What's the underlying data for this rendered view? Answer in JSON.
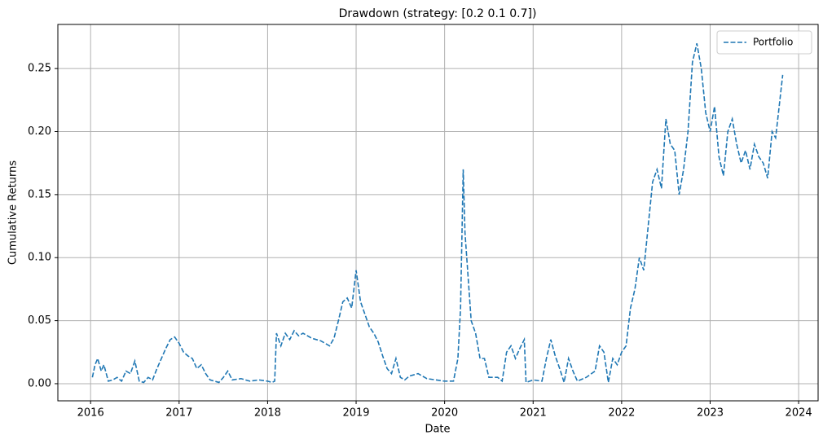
{
  "chart_data": {
    "type": "line",
    "title": "Drawdown (strategy: [0.2 0.1 0.7])",
    "x_label": "Date",
    "y_label": "Cumulative Returns",
    "x": [
      2016.02,
      2016.05,
      2016.08,
      2016.12,
      2016.15,
      2016.2,
      2016.25,
      2016.3,
      2016.35,
      2016.4,
      2016.45,
      2016.5,
      2016.55,
      2016.6,
      2016.65,
      2016.7,
      2016.75,
      2016.8,
      2016.85,
      2016.9,
      2016.95,
      2017.0,
      2017.05,
      2017.1,
      2017.15,
      2017.2,
      2017.25,
      2017.3,
      2017.35,
      2017.4,
      2017.45,
      2017.5,
      2017.55,
      2017.6,
      2017.7,
      2017.8,
      2017.9,
      2018.0,
      2018.05,
      2018.08,
      2018.1,
      2018.15,
      2018.2,
      2018.25,
      2018.3,
      2018.35,
      2018.4,
      2018.5,
      2018.6,
      2018.7,
      2018.75,
      2018.8,
      2018.85,
      2018.9,
      2018.95,
      2019.0,
      2019.05,
      2019.1,
      2019.15,
      2019.2,
      2019.25,
      2019.3,
      2019.35,
      2019.4,
      2019.45,
      2019.5,
      2019.55,
      2019.6,
      2019.7,
      2019.8,
      2019.9,
      2020.0,
      2020.1,
      2020.15,
      2020.18,
      2020.21,
      2020.23,
      2020.26,
      2020.3,
      2020.35,
      2020.4,
      2020.45,
      2020.5,
      2020.6,
      2020.65,
      2020.7,
      2020.75,
      2020.8,
      2020.85,
      2020.9,
      2020.92,
      2021.0,
      2021.1,
      2021.15,
      2021.2,
      2021.25,
      2021.3,
      2021.35,
      2021.4,
      2021.45,
      2021.5,
      2021.6,
      2021.7,
      2021.75,
      2021.8,
      2021.85,
      2021.9,
      2021.95,
      2022.0,
      2022.05,
      2022.1,
      2022.15,
      2022.2,
      2022.25,
      2022.3,
      2022.35,
      2022.4,
      2022.45,
      2022.5,
      2022.55,
      2022.6,
      2022.65,
      2022.7,
      2022.75,
      2022.8,
      2022.85,
      2022.9,
      2022.95,
      2023.0,
      2023.05,
      2023.1,
      2023.15,
      2023.2,
      2023.25,
      2023.3,
      2023.35,
      2023.4,
      2023.45,
      2023.5,
      2023.55,
      2023.6,
      2023.65,
      2023.7,
      2023.74,
      2023.78,
      2023.82
    ],
    "series": [
      {
        "name": "Portfolio",
        "color": "#1f77b4",
        "values": [
          0.005,
          0.015,
          0.02,
          0.01,
          0.015,
          0.002,
          0.003,
          0.005,
          0.002,
          0.01,
          0.008,
          0.018,
          0.002,
          0.001,
          0.005,
          0.003,
          0.012,
          0.02,
          0.028,
          0.035,
          0.037,
          0.032,
          0.025,
          0.022,
          0.02,
          0.012,
          0.015,
          0.008,
          0.003,
          0.002,
          0.001,
          0.005,
          0.01,
          0.003,
          0.004,
          0.002,
          0.003,
          0.002,
          0.001,
          0.002,
          0.04,
          0.03,
          0.04,
          0.035,
          0.042,
          0.038,
          0.04,
          0.036,
          0.034,
          0.03,
          0.036,
          0.05,
          0.065,
          0.068,
          0.06,
          0.09,
          0.065,
          0.055,
          0.045,
          0.04,
          0.033,
          0.022,
          0.012,
          0.008,
          0.02,
          0.005,
          0.003,
          0.006,
          0.008,
          0.004,
          0.003,
          0.002,
          0.002,
          0.02,
          0.06,
          0.17,
          0.12,
          0.09,
          0.05,
          0.04,
          0.02,
          0.02,
          0.005,
          0.005,
          0.002,
          0.025,
          0.03,
          0.02,
          0.028,
          0.035,
          0.001,
          0.003,
          0.002,
          0.02,
          0.035,
          0.022,
          0.012,
          0.001,
          0.02,
          0.01,
          0.002,
          0.005,
          0.01,
          0.03,
          0.025,
          0.001,
          0.02,
          0.015,
          0.025,
          0.03,
          0.06,
          0.075,
          0.1,
          0.09,
          0.125,
          0.16,
          0.17,
          0.155,
          0.21,
          0.19,
          0.185,
          0.15,
          0.17,
          0.2,
          0.255,
          0.27,
          0.25,
          0.215,
          0.2,
          0.22,
          0.18,
          0.165,
          0.2,
          0.21,
          0.19,
          0.175,
          0.185,
          0.17,
          0.19,
          0.18,
          0.175,
          0.163,
          0.2,
          0.195,
          0.22,
          0.245
        ]
      }
    ],
    "xlim": [
      2015.63,
      2024.22
    ],
    "xticks": [
      2016,
      2017,
      2018,
      2019,
      2020,
      2021,
      2022,
      2023,
      2024
    ],
    "ylim": [
      -0.0136,
      0.285
    ],
    "yticks": [
      {
        "value": 0,
        "label": "0.00"
      },
      0.05,
      {
        "value": 0.1,
        "label": "0.10"
      },
      0.15,
      {
        "value": 0.2,
        "label": "0.20"
      },
      0.25
    ],
    "grid": true,
    "legend": "upper right"
  }
}
